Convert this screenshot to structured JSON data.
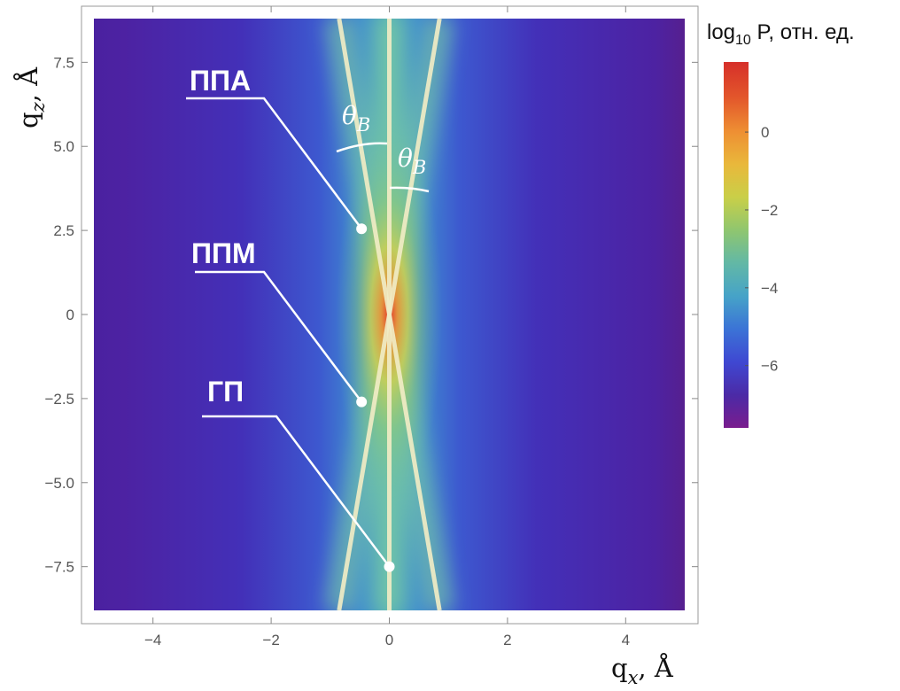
{
  "chart_data": {
    "type": "heatmap",
    "xlabel_main": "q",
    "xlabel_sub": "x",
    "xlabel_unit": ", Å",
    "ylabel_main": "q",
    "ylabel_sub": "z",
    "ylabel_unit": ", Å",
    "xlim": [
      -5,
      5
    ],
    "ylim": [
      -8.8,
      8.8
    ],
    "xticks": [
      {
        "v": -4,
        "label": "−4"
      },
      {
        "v": -2,
        "label": "−2"
      },
      {
        "v": 0,
        "label": "0"
      },
      {
        "v": 2,
        "label": "2"
      },
      {
        "v": 4,
        "label": "4"
      }
    ],
    "yticks": [
      {
        "v": 7.5,
        "label": "7.5"
      },
      {
        "v": 5.0,
        "label": "5.0"
      },
      {
        "v": 2.5,
        "label": "2.5"
      },
      {
        "v": 0,
        "label": "0"
      },
      {
        "v": -2.5,
        "label": "−2.5"
      },
      {
        "v": -5.0,
        "label": "−5.0"
      },
      {
        "v": -7.5,
        "label": "−7.5"
      }
    ],
    "colorbar": {
      "title_main": "log",
      "title_sub": "10",
      "title_rest": " P, отн. ед.",
      "range": [
        -7.6,
        1.8
      ],
      "ticks": [
        {
          "v": 0,
          "label": "0"
        },
        {
          "v": -2,
          "label": "−2"
        },
        {
          "v": -4,
          "label": "−4"
        },
        {
          "v": -6,
          "label": "−6"
        }
      ],
      "colormap": [
        "#7a1c8e",
        "#4b2aa6",
        "#3f48d2",
        "#3b73d6",
        "#46a3c8",
        "#62b8a6",
        "#8fc66f",
        "#c9cf48",
        "#e9b83b",
        "#ee8f33",
        "#e3582b",
        "#d62f2a"
      ]
    },
    "lines": [
      {
        "name": "vertical",
        "x": [
          0,
          0
        ],
        "y": [
          -8.8,
          8.8
        ]
      },
      {
        "name": "diag-left",
        "x": [
          -0.85,
          0.85
        ],
        "y": [
          8.8,
          -8.8
        ]
      },
      {
        "name": "diag-right",
        "x": [
          0.85,
          -0.85
        ],
        "y": [
          8.8,
          -8.8
        ]
      }
    ],
    "annotations": [
      {
        "label": "ППА",
        "point": {
          "x": -0.47,
          "y": 2.55
        }
      },
      {
        "label": "ППМ",
        "point": {
          "x": -0.47,
          "y": -2.6
        }
      },
      {
        "label": "ГП",
        "point": {
          "x": 0,
          "y": -7.5
        }
      }
    ],
    "angle_labels": [
      {
        "symbol": "θ",
        "sub": "B"
      },
      {
        "symbol": "θ",
        "sub": "B"
      }
    ]
  }
}
